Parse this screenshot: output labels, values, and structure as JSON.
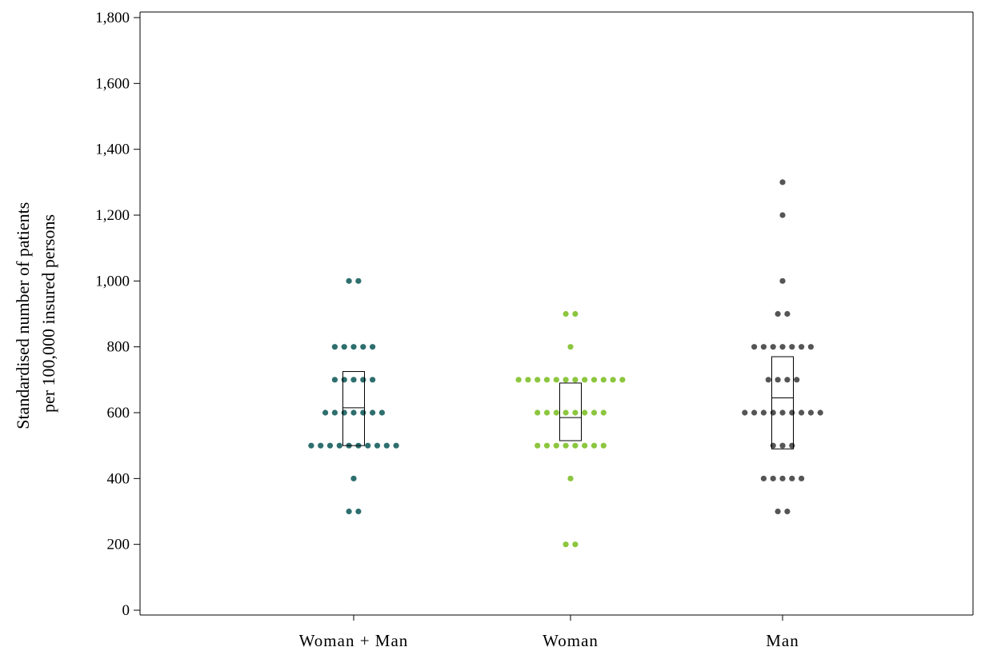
{
  "chart_data": {
    "type": "scatter",
    "subtype": "dot-plot-with-boxplot",
    "title": "",
    "xlabel": "",
    "ylabel_lines": [
      "Standardised number of patients",
      "per 100,000 insured persons"
    ],
    "ylim": [
      0,
      1800
    ],
    "yticks": [
      0,
      200,
      400,
      600,
      800,
      1000,
      1200,
      1400,
      1600,
      1800
    ],
    "ytick_labels": [
      "0",
      "200",
      "400",
      "600",
      "800",
      "1,000",
      "1,200",
      "1,400",
      "1,600",
      "1,800"
    ],
    "grid": false,
    "legend": "none",
    "categories": [
      "Woman + Man",
      "Woman",
      "Man"
    ],
    "series": [
      {
        "color": "#2e6e6e",
        "points": [
          {
            "y": 1000,
            "count": 2
          },
          {
            "y": 800,
            "count": 5
          },
          {
            "y": 700,
            "count": 5
          },
          {
            "y": 600,
            "count": 7
          },
          {
            "y": 500,
            "count": 10
          },
          {
            "y": 400,
            "count": 1
          },
          {
            "y": 300,
            "count": 2
          }
        ],
        "box": {
          "q1": 500,
          "median": 615,
          "q3": 725
        }
      },
      {
        "color": "#8cc63f",
        "points": [
          {
            "y": 900,
            "count": 2
          },
          {
            "y": 800,
            "count": 1
          },
          {
            "y": 700,
            "count": 12
          },
          {
            "y": 600,
            "count": 8
          },
          {
            "y": 500,
            "count": 8
          },
          {
            "y": 400,
            "count": 1
          },
          {
            "y": 200,
            "count": 2
          }
        ],
        "box": {
          "q1": 515,
          "median": 585,
          "q3": 690
        }
      },
      {
        "color": "#555555",
        "points": [
          {
            "y": 1300,
            "count": 1
          },
          {
            "y": 1200,
            "count": 1
          },
          {
            "y": 1000,
            "count": 1
          },
          {
            "y": 900,
            "count": 2
          },
          {
            "y": 800,
            "count": 7
          },
          {
            "y": 700,
            "count": 4
          },
          {
            "y": 600,
            "count": 9
          },
          {
            "y": 500,
            "count": 3
          },
          {
            "y": 400,
            "count": 5
          },
          {
            "y": 300,
            "count": 2
          }
        ],
        "box": {
          "q1": 490,
          "median": 645,
          "q3": 770
        }
      }
    ]
  }
}
